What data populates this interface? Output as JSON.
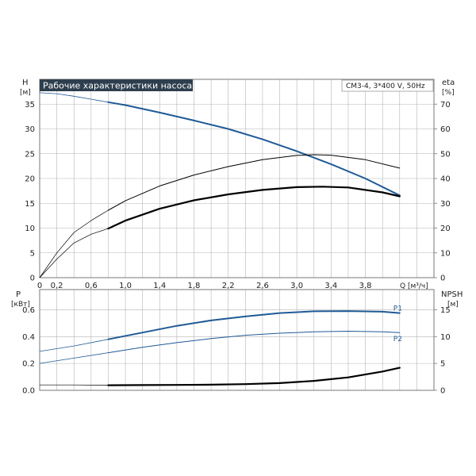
{
  "title": "Рабочие характеристики насоса",
  "model": "CM3-4, 3*400 V, 50Hz",
  "colors": {
    "blue": "#1f5a96",
    "black": "#000000",
    "grid": "#b4b4b4",
    "title_bg": "#2e3e4e"
  },
  "chart_data": [
    {
      "type": "line",
      "xlabel": "Q [м³/ч]",
      "xlim": [
        0,
        4.6
      ],
      "x_ticks": [
        "0",
        "0,2",
        "0,6",
        "1,0",
        "1,4",
        "1,8",
        "2,2",
        "2,6",
        "3,0",
        "3,4",
        "3,8"
      ],
      "left_axis": {
        "label": "H",
        "unit": "[м]",
        "ylim": [
          0,
          40
        ],
        "ticks": [
          0,
          5,
          10,
          15,
          20,
          25,
          30,
          35
        ]
      },
      "right_axis": {
        "label": "eta",
        "unit": "[%]",
        "ylim": [
          0,
          80
        ],
        "ticks": [
          0,
          10,
          20,
          30,
          40,
          50,
          60,
          70
        ]
      },
      "grid": true,
      "series": [
        {
          "axis": "left",
          "kind": "head",
          "color": "#1f5a96",
          "x": [
            0,
            0.2,
            0.4,
            0.6,
            0.8,
            1.0,
            1.4,
            1.8,
            2.2,
            2.6,
            3.0,
            3.4,
            3.8,
            4.2
          ],
          "y": [
            37.3,
            37.1,
            36.6,
            36.0,
            35.4,
            34.8,
            33.3,
            31.7,
            30.0,
            27.9,
            25.5,
            22.9,
            20.0,
            16.6
          ]
        },
        {
          "axis": "right",
          "kind": "efficiency",
          "color": "#000000",
          "x": [
            0,
            0.2,
            0.4,
            0.6,
            0.8,
            1.0,
            1.4,
            1.8,
            2.2,
            2.6,
            3.0,
            3.2,
            3.4,
            3.8,
            4.2
          ],
          "y": [
            0,
            10,
            18.2,
            23.0,
            27.2,
            31.0,
            37.0,
            41.4,
            44.8,
            47.6,
            49.3,
            49.6,
            49.4,
            47.6,
            44.2
          ]
        },
        {
          "axis": "right",
          "kind": "efficiency",
          "color": "#000000",
          "x": [
            0,
            0.2,
            0.4,
            0.6,
            0.8,
            1.0,
            1.4,
            1.8,
            2.2,
            2.6,
            3.0,
            3.3,
            3.6,
            4.0,
            4.2
          ],
          "y": [
            0,
            7.5,
            14.0,
            17.5,
            19.8,
            23.0,
            27.8,
            31.2,
            33.6,
            35.4,
            36.5,
            36.7,
            36.4,
            34.4,
            32.8
          ]
        }
      ]
    },
    {
      "type": "line",
      "xlim": [
        0,
        4.6
      ],
      "left_axis": {
        "label": "P",
        "unit": "[кВт]",
        "ylim": [
          0,
          0.75
        ],
        "ticks": [
          "0.0",
          "0.2",
          "0.4",
          "0.6"
        ]
      },
      "right_axis": {
        "label": "NPSH",
        "unit": "[м]",
        "ylim": [
          0,
          18.75
        ],
        "ticks": [
          0,
          5,
          10,
          15
        ]
      },
      "grid": true,
      "series": [
        {
          "name": "P1",
          "axis": "left",
          "color": "#1f5a96",
          "x": [
            0,
            0.4,
            0.8,
            1.2,
            1.6,
            2.0,
            2.4,
            2.8,
            3.2,
            3.6,
            4.0,
            4.2
          ],
          "y": [
            0.29,
            0.33,
            0.38,
            0.43,
            0.48,
            0.52,
            0.55,
            0.575,
            0.588,
            0.59,
            0.585,
            0.575
          ]
        },
        {
          "name": "P2",
          "axis": "left",
          "color": "#1f5a96",
          "x": [
            0,
            0.4,
            0.8,
            1.2,
            1.6,
            2.0,
            2.4,
            2.8,
            3.2,
            3.6,
            4.0,
            4.2
          ],
          "y": [
            0.2,
            0.24,
            0.28,
            0.32,
            0.355,
            0.385,
            0.41,
            0.425,
            0.435,
            0.44,
            0.435,
            0.43
          ]
        },
        {
          "axis": "right",
          "kind": "npsh",
          "color": "#000000",
          "x": [
            0,
            0.4,
            0.8,
            1.2,
            1.6,
            2.0,
            2.4,
            2.8,
            3.2,
            3.6,
            4.0,
            4.2
          ],
          "y": [
            1.0,
            1.0,
            0.95,
            0.97,
            1.0,
            1.05,
            1.15,
            1.35,
            1.75,
            2.4,
            3.5,
            4.2
          ]
        }
      ]
    }
  ]
}
